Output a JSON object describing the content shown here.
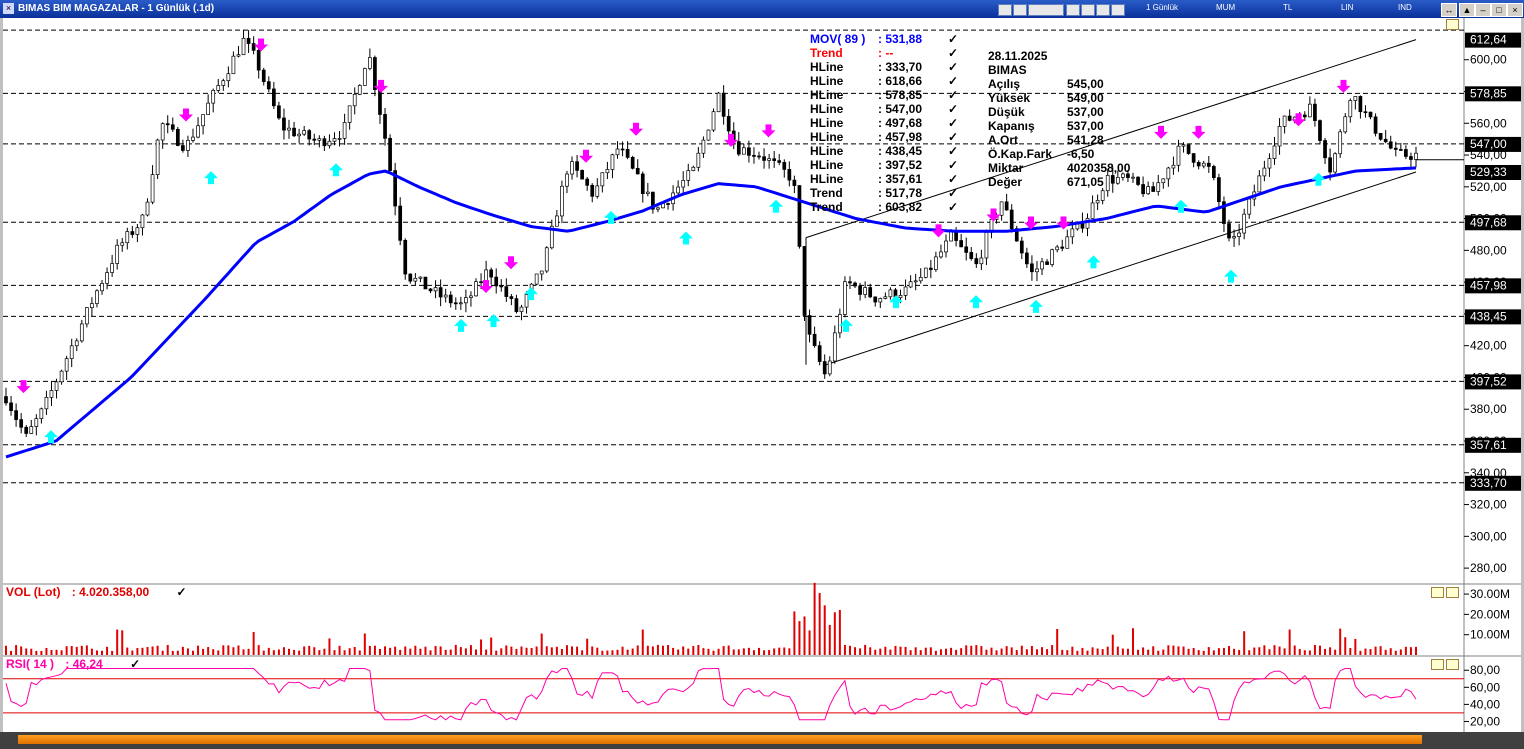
{
  "window": {
    "title": "BIMAS BIM MAGAZALAR - 1 Günlük (.1d)",
    "toolbar": {
      "period": "1 Günlük",
      "mum": "MUM",
      "tl": "TL",
      "lin": "LIN",
      "ind": "IND"
    }
  },
  "info_box": {
    "date": "28.11.2025",
    "symbol": "BIMAS",
    "rows": [
      {
        "label": "Açılış",
        "value": "545,00"
      },
      {
        "label": "Yüksek",
        "value": "549,00"
      },
      {
        "label": "Düşük",
        "value": "537,00"
      },
      {
        "label": "Kapanış",
        "value": "537,00"
      },
      {
        "label": "A.Ort",
        "value": "541,28"
      },
      {
        "label": "Ö.Kap.Fark",
        "value": "-6,50"
      },
      {
        "label": "Miktar",
        "value": "4020358,00"
      },
      {
        "label": "Değer",
        "value": "671,05"
      }
    ]
  },
  "legend": [
    {
      "name": "MOV( 89 )",
      "value": ": 531,88",
      "color": "#0000ff"
    },
    {
      "name": "Trend",
      "value": ": --",
      "color": "#ff0000"
    },
    {
      "name": "HLine",
      "value": ": 333,70",
      "color": "#000000"
    },
    {
      "name": "HLine",
      "value": ": 618,66",
      "color": "#000000"
    },
    {
      "name": "HLine",
      "value": ": 578,85",
      "color": "#000000"
    },
    {
      "name": "HLine",
      "value": ": 547,00",
      "color": "#000000"
    },
    {
      "name": "HLine",
      "value": ": 497,68",
      "color": "#000000"
    },
    {
      "name": "HLine",
      "value": ": 457,98",
      "color": "#000000"
    },
    {
      "name": "HLine",
      "value": ": 438,45",
      "color": "#000000"
    },
    {
      "name": "HLine",
      "value": ": 397,52",
      "color": "#000000"
    },
    {
      "name": "HLine",
      "value": ": 357,61",
      "color": "#000000"
    },
    {
      "name": "Trend",
      "value": ": 517,78",
      "color": "#000000"
    },
    {
      "name": "Trend",
      "value": ": 603,82",
      "color": "#000000"
    }
  ],
  "vol_legend": {
    "name": "VOL (Lot)",
    "value": ": 4.020.358,00"
  },
  "rsi_legend": {
    "name": "RSI( 14 )",
    "value": ": 46,24"
  },
  "colors": {
    "ma": "#0000ff",
    "volume": "#e00000",
    "rsi": "#ff00aa",
    "sell_arrow": "#ff00ff",
    "buy_arrow": "#00ffff",
    "titlebar": "#0a2f9a",
    "scrollbar": "#ff9010"
  },
  "chart_data": [
    {
      "type": "line",
      "panel": "price",
      "ylim": [
        270,
        625
      ],
      "y_ticks": [
        "600,00",
        "580,00",
        "560,00",
        "540,00",
        "520,00",
        "500,00",
        "480,00",
        "460,00",
        "440,00",
        "420,00",
        "400,00",
        "380,00",
        "360,00",
        "340,00",
        "320,00",
        "300,00",
        "280,00"
      ],
      "y_tick_values": [
        600,
        580,
        560,
        540,
        520,
        500,
        480,
        460,
        440,
        420,
        400,
        380,
        360,
        340,
        320,
        300,
        280
      ],
      "hlines": [
        618.66,
        578.85,
        547.0,
        497.68,
        457.98,
        438.45,
        397.52,
        357.61,
        333.7
      ],
      "axis_labels": [
        {
          "text": "612,64",
          "value": 612.64
        },
        {
          "text": "578,85",
          "value": 578.85
        },
        {
          "text": "547,00",
          "value": 547.0
        },
        {
          "text": "529,33",
          "value": 529.33
        },
        {
          "text": "497,68",
          "value": 497.68
        },
        {
          "text": "457,98",
          "value": 457.98
        },
        {
          "text": "438,45",
          "value": 438.45
        },
        {
          "text": "397,52",
          "value": 397.52
        },
        {
          "text": "357,61",
          "value": 357.61
        },
        {
          "text": "333,70",
          "value": 333.7
        }
      ],
      "x_count": 280,
      "price_anchors": [
        [
          0,
          388
        ],
        [
          8,
          362
        ],
        [
          15,
          380
        ],
        [
          25,
          415
        ],
        [
          35,
          450
        ],
        [
          45,
          482
        ],
        [
          55,
          500
        ],
        [
          62,
          560
        ],
        [
          72,
          545
        ],
        [
          82,
          575
        ],
        [
          95,
          612
        ],
        [
          100,
          600
        ],
        [
          110,
          558
        ],
        [
          125,
          548
        ],
        [
          135,
          555
        ],
        [
          145,
          605
        ],
        [
          152,
          548
        ],
        [
          160,
          465
        ],
        [
          175,
          450
        ],
        [
          183,
          445
        ],
        [
          193,
          468
        ],
        [
          205,
          440
        ],
        [
          215,
          470
        ],
        [
          225,
          535
        ],
        [
          235,
          515
        ],
        [
          245,
          545
        ],
        [
          260,
          505
        ],
        [
          275,
          530
        ],
        [
          285,
          578
        ],
        [
          292,
          545
        ],
        [
          302,
          540
        ],
        [
          315,
          525
        ],
        [
          320,
          430
        ],
        [
          328,
          400
        ],
        [
          336,
          460
        ],
        [
          348,
          450
        ],
        [
          360,
          455
        ],
        [
          368,
          465
        ],
        [
          378,
          488
        ],
        [
          388,
          470
        ],
        [
          398,
          512
        ],
        [
          410,
          465
        ],
        [
          420,
          480
        ],
        [
          432,
          500
        ],
        [
          440,
          525
        ],
        [
          448,
          525
        ],
        [
          458,
          515
        ],
        [
          470,
          545
        ],
        [
          482,
          530
        ],
        [
          490,
          480
        ],
        [
          500,
          520
        ],
        [
          510,
          560
        ],
        [
          522,
          570
        ],
        [
          530,
          530
        ],
        [
          538,
          580
        ],
        [
          546,
          560
        ],
        [
          556,
          540
        ],
        [
          564,
          540
        ]
      ],
      "ma89_anchors": [
        [
          0,
          350
        ],
        [
          20,
          360
        ],
        [
          50,
          400
        ],
        [
          80,
          450
        ],
        [
          100,
          485
        ],
        [
          115,
          498
        ],
        [
          130,
          515
        ],
        [
          145,
          528
        ],
        [
          152,
          530
        ],
        [
          165,
          520
        ],
        [
          180,
          510
        ],
        [
          195,
          502
        ],
        [
          210,
          495
        ],
        [
          225,
          492
        ],
        [
          240,
          498
        ],
        [
          255,
          505
        ],
        [
          270,
          515
        ],
        [
          285,
          522
        ],
        [
          300,
          520
        ],
        [
          320,
          510
        ],
        [
          340,
          500
        ],
        [
          360,
          494
        ],
        [
          380,
          492
        ],
        [
          400,
          492
        ],
        [
          420,
          495
        ],
        [
          440,
          500
        ],
        [
          460,
          508
        ],
        [
          480,
          504
        ],
        [
          495,
          512
        ],
        [
          510,
          520
        ],
        [
          525,
          525
        ],
        [
          540,
          530
        ],
        [
          564,
          531.88
        ]
      ],
      "ma89_last": 531.88,
      "trend_channel": {
        "upper": [
          [
            320,
            488
          ],
          [
            564,
            612.64
          ]
        ],
        "lower": [
          [
            328,
            408
          ],
          [
            564,
            529.33
          ]
        ]
      },
      "sell_arrows": [
        [
          7,
          387
        ],
        [
          72,
          558
        ],
        [
          102,
          602
        ],
        [
          150,
          576
        ],
        [
          192,
          450
        ],
        [
          202,
          465
        ],
        [
          232,
          532
        ],
        [
          252,
          549
        ],
        [
          290,
          542
        ],
        [
          305,
          548
        ],
        [
          373,
          485
        ],
        [
          395,
          495
        ],
        [
          410,
          490
        ],
        [
          423,
          490
        ],
        [
          462,
          547
        ],
        [
          477,
          547
        ],
        [
          517,
          555
        ],
        [
          535,
          576
        ]
      ],
      "buy_arrows": [
        [
          18,
          370
        ],
        [
          82,
          533
        ],
        [
          132,
          538
        ],
        [
          182,
          440
        ],
        [
          195,
          443
        ],
        [
          210,
          460
        ],
        [
          242,
          508
        ],
        [
          272,
          495
        ],
        [
          308,
          515
        ],
        [
          336,
          440
        ],
        [
          356,
          455
        ],
        [
          388,
          455
        ],
        [
          412,
          452
        ],
        [
          435,
          480
        ],
        [
          470,
          515
        ],
        [
          490,
          471
        ],
        [
          525,
          532
        ]
      ]
    },
    {
      "type": "bar",
      "panel": "volume",
      "ylim": [
        0,
        32
      ],
      "y_ticks": [
        "30.00M",
        "20.00M",
        "10.00M"
      ],
      "y_tick_values": [
        30,
        20,
        10
      ],
      "last": 4.02
    },
    {
      "type": "line",
      "panel": "rsi",
      "ylim": [
        10,
        92
      ],
      "y_ticks": [
        "80,00",
        "60,00",
        "40,00",
        "20,00"
      ],
      "y_tick_values": [
        80,
        60,
        40,
        20
      ],
      "bands": [
        70,
        30
      ],
      "last": 46.24
    }
  ]
}
